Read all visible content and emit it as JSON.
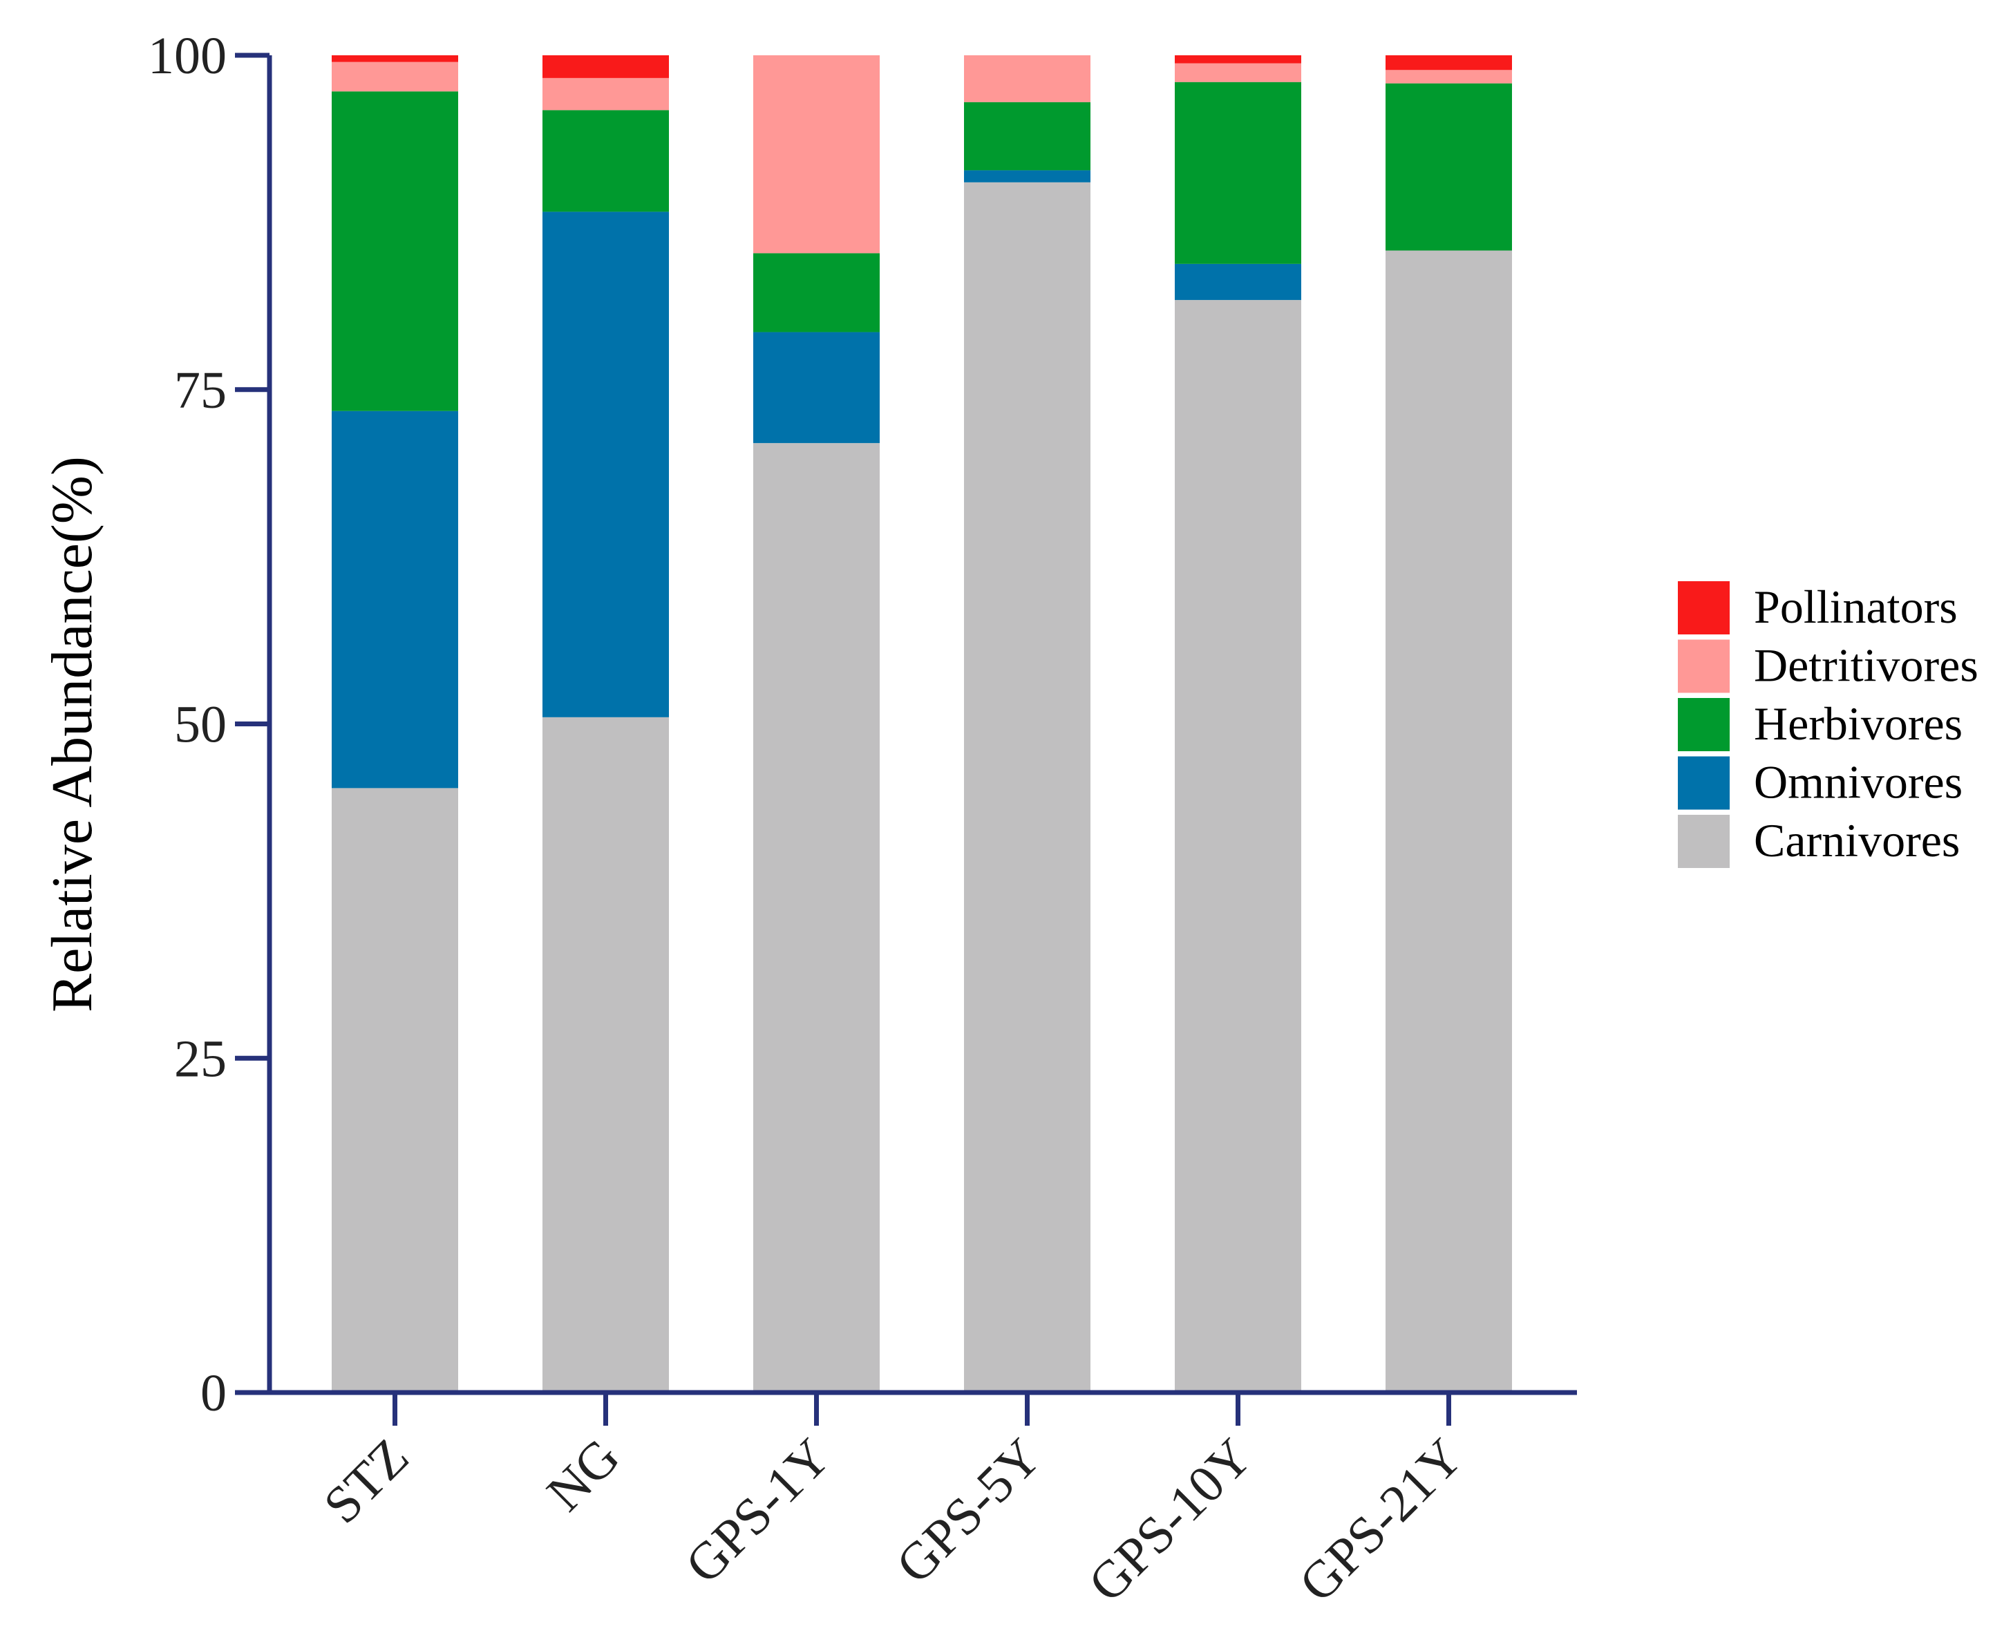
{
  "chart_data": {
    "type": "bar",
    "stacked": true,
    "title": "",
    "xlabel": "",
    "ylabel": "Relative Abundance(%)",
    "ylim": [
      0,
      100
    ],
    "yticks": [
      0,
      25,
      50,
      75,
      100
    ],
    "grid": false,
    "legend_position": "right",
    "categories": [
      "STZ",
      "NG",
      "GPS-1Y",
      "GPS-5Y",
      "GPS-10Y",
      "GPS-21Y"
    ],
    "series": [
      {
        "name": "Carnivores",
        "color": "#c0bfc0",
        "values": [
          45.2,
          50.5,
          71.0,
          90.5,
          81.7,
          85.4
        ]
      },
      {
        "name": "Omnivores",
        "color": "#0072aa",
        "values": [
          28.2,
          37.8,
          8.3,
          0.9,
          2.7,
          0.0
        ]
      },
      {
        "name": "Herbivores",
        "color": "#009a2e",
        "values": [
          23.9,
          7.6,
          5.9,
          5.1,
          13.6,
          12.5
        ]
      },
      {
        "name": "Detritivores",
        "color": "#ff9896",
        "values": [
          2.2,
          2.4,
          14.8,
          3.5,
          1.4,
          1.0
        ]
      },
      {
        "name": "Pollinators",
        "color": "#f91a1a",
        "values": [
          0.5,
          1.7,
          0.0,
          0.0,
          0.6,
          1.1
        ]
      }
    ],
    "legend_order": [
      "Pollinators",
      "Detritivores",
      "Herbivores",
      "Omnivores",
      "Carnivores"
    ],
    "axis_color": "#26317a"
  }
}
